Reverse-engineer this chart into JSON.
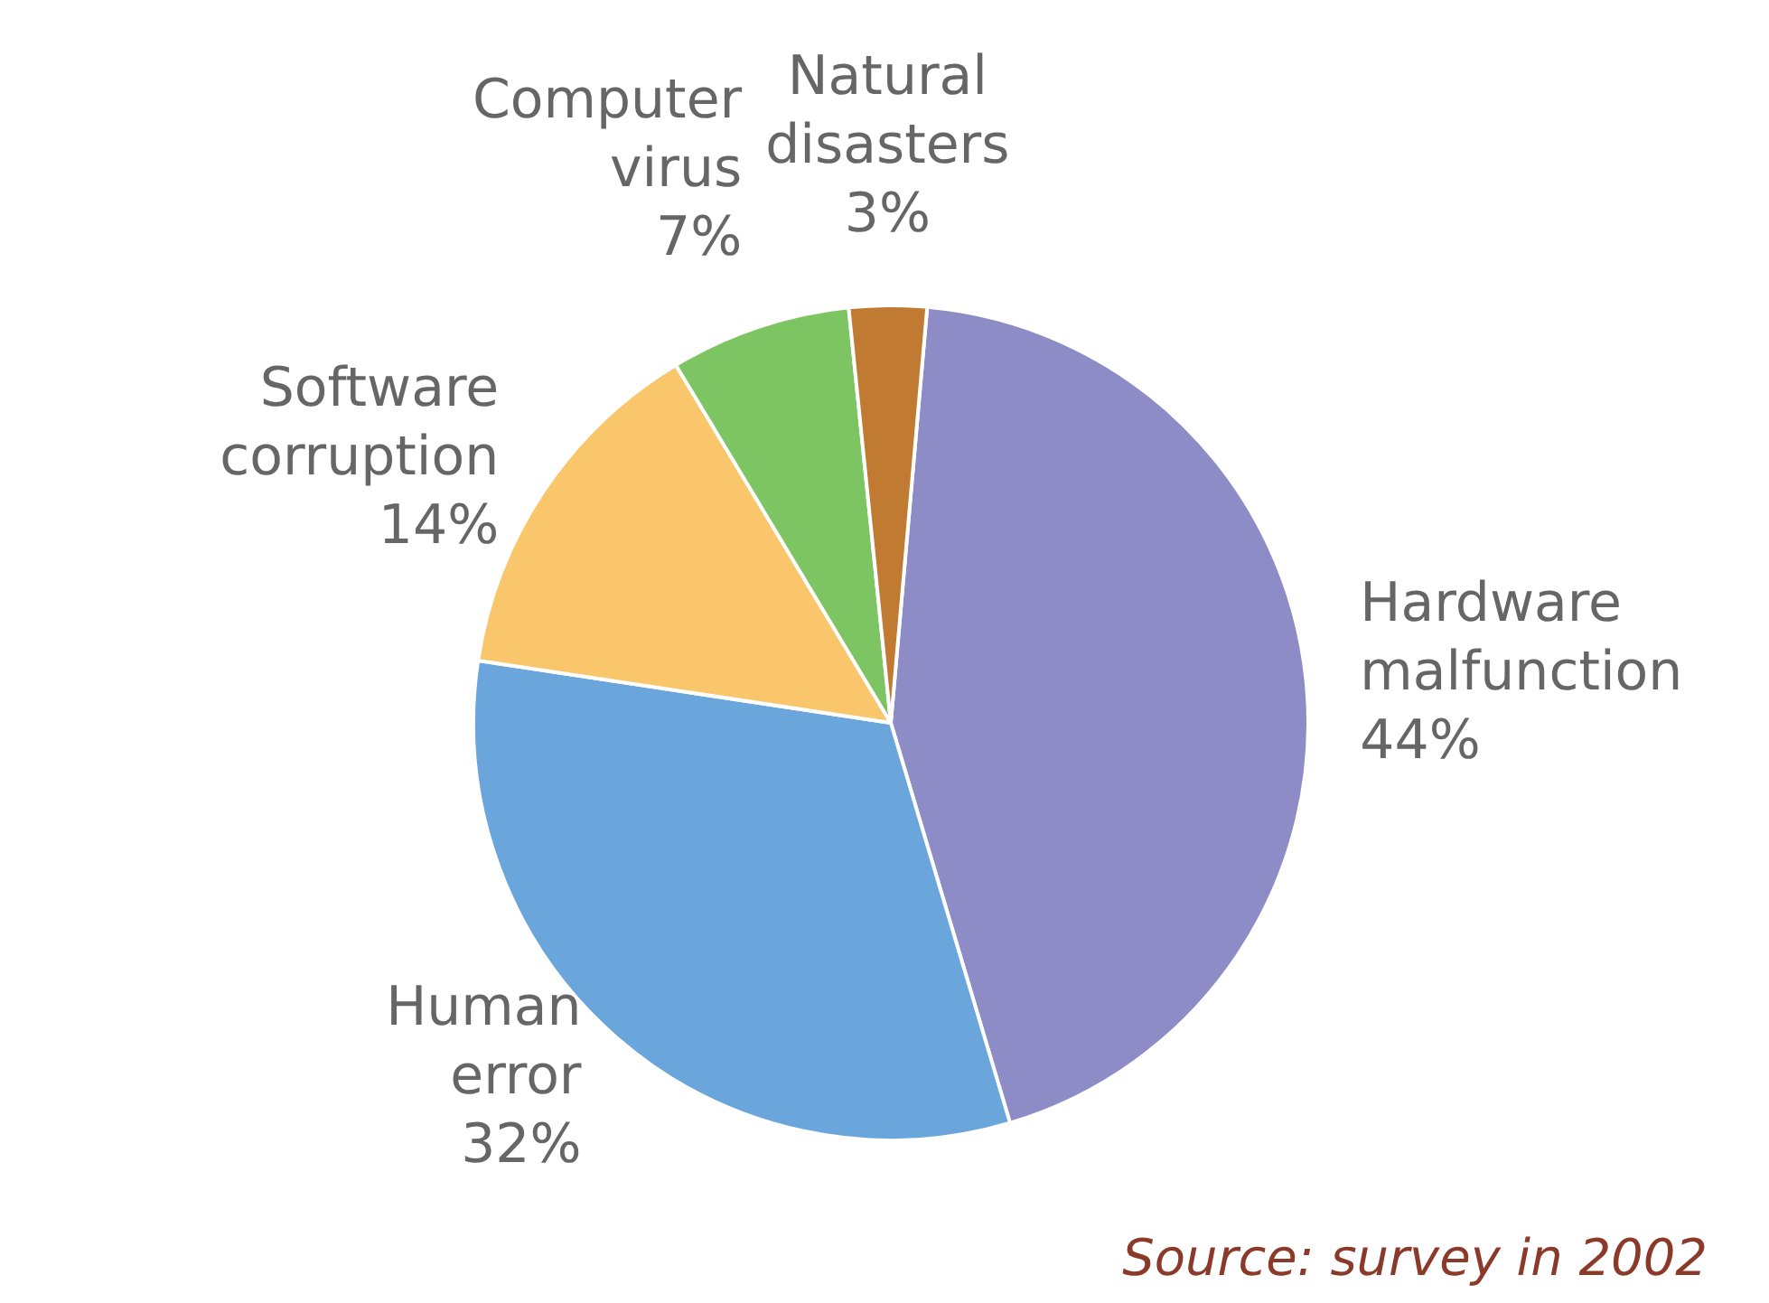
{
  "chart_data": {
    "type": "pie",
    "categories": [
      "Hardware malfunction",
      "Human error",
      "Software corruption",
      "Computer virus",
      "Natural disasters"
    ],
    "values": [
      44,
      32,
      14,
      7,
      3
    ],
    "value_labels": [
      "44%",
      "32%",
      "14%",
      "7%",
      "3%"
    ],
    "colors": [
      "#8e8cc6",
      "#6aa6db",
      "#f9c66b",
      "#7dc463",
      "#c07a32"
    ],
    "legend": false,
    "annotations": [
      "Source: survey in 2002"
    ]
  }
}
